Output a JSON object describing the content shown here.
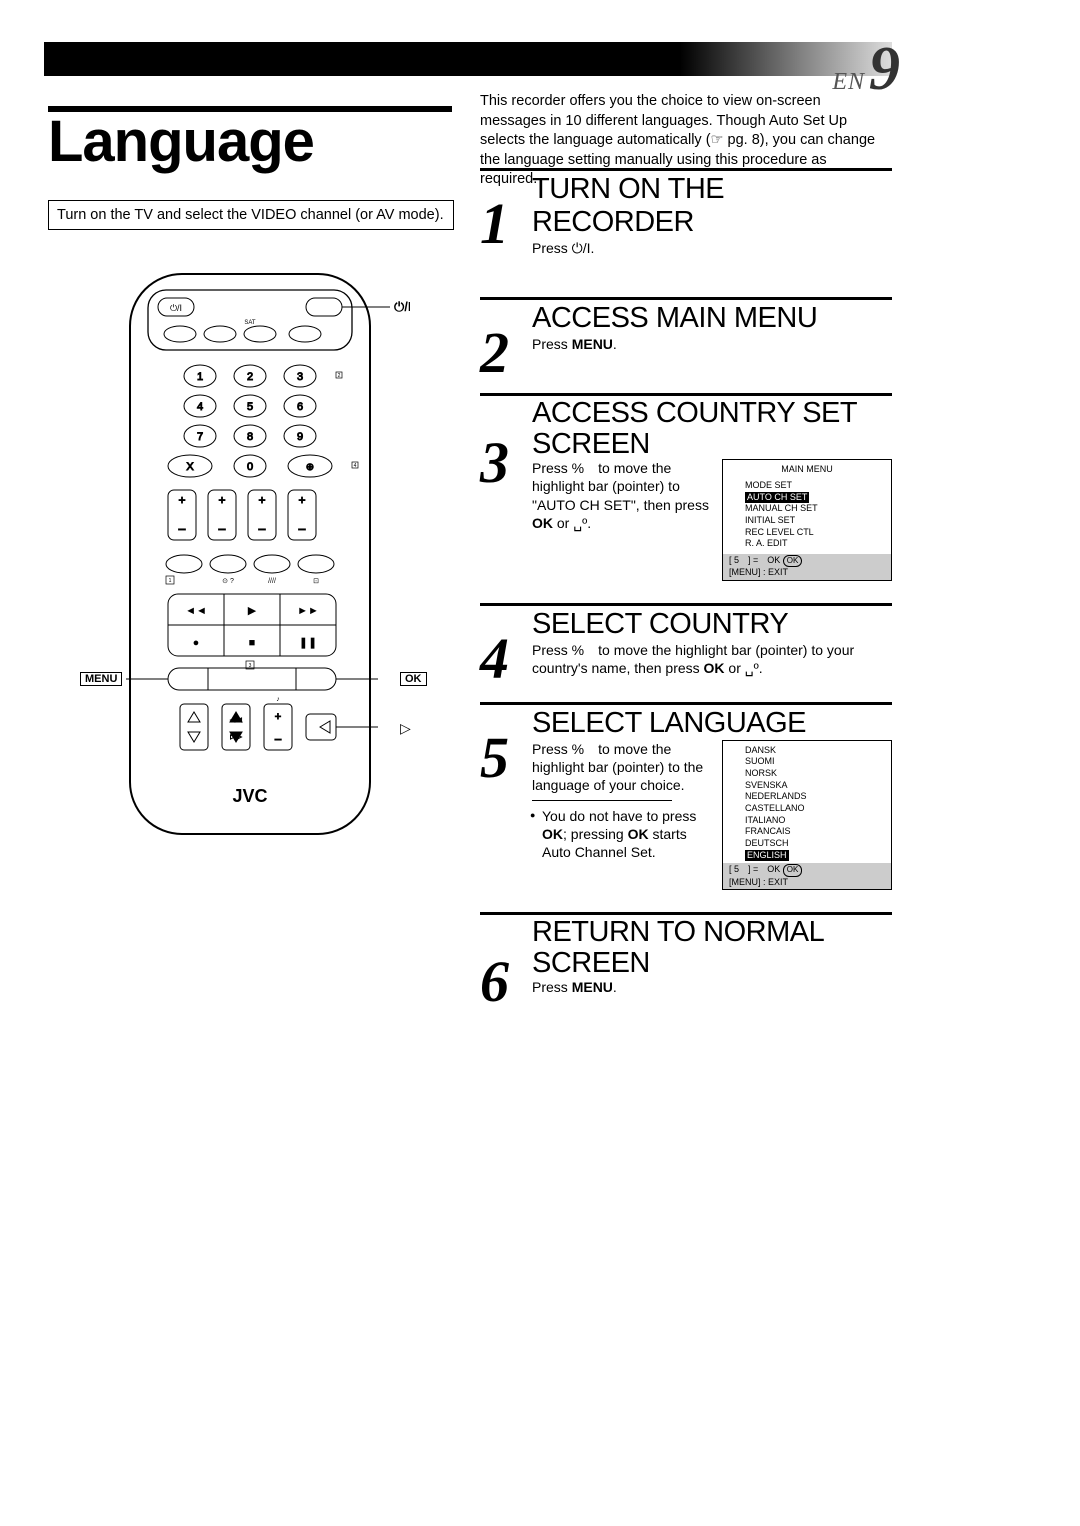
{
  "page": {
    "lang_code": "EN",
    "page_number": "9"
  },
  "title": "Language",
  "intro": "This recorder offers you the choice to view on-screen messages in 10 different languages. Though Auto Set Up selects the language automatically (☞ pg. 8), you can change the language setting manually using this procedure as required.",
  "note": "Turn on the TV and select the VIDEO channel (or AV mode).",
  "remote": {
    "menu_label": "MENU",
    "ok_label": "OK",
    "brand": "JVC",
    "power_icon": "⏻/I"
  },
  "steps": [
    {
      "num": "1",
      "title": "TURN ON THE RECORDER",
      "body": "Press ⏻/I."
    },
    {
      "num": "2",
      "title": "ACCESS MAIN MENU",
      "body_pre": "Press ",
      "body_bold": "MENU",
      "body_post": "."
    },
    {
      "num": "3",
      "title": "ACCESS COUNTRY SET SCREEN",
      "body_html": "Press %　to move the highlight bar (pointer) to \"AUTO CH SET\", then press <b>OK</b> or ␣º.",
      "menu": {
        "title": "MAIN MENU",
        "items": [
          "MODE SET",
          "AUTO CH SET",
          "MANUAL CH SET",
          "INITIAL SET",
          "REC LEVEL CTL",
          "R. A. EDIT"
        ],
        "highlight_index": 1,
        "foot1": "[ 5　] =　OK",
        "foot2": "[MENU] : EXIT"
      }
    },
    {
      "num": "4",
      "title": "SELECT COUNTRY",
      "body_html": "Press %　to move the highlight bar (pointer) to your country's name, then press <b>OK</b> or ␣º."
    },
    {
      "num": "5",
      "title": "SELECT LANGUAGE",
      "body_html": "Press %　to move the highlight bar (pointer) to the language of your choice.",
      "note_html": "You do not have to press <b>OK</b>; pressing <b>OK</b> starts Auto Channel Set.",
      "langs": {
        "items": [
          "DANSK",
          "SUOMI",
          "NORSK",
          "SVENSKA",
          "NEDERLANDS",
          "CASTELLANO",
          "ITALIANO",
          "FRANCAIS",
          "DEUTSCH",
          "ENGLISH"
        ],
        "highlight_index": 9,
        "foot1": "[ 5　] =　OK",
        "foot2": "[MENU] : EXIT"
      }
    },
    {
      "num": "6",
      "title": "RETURN TO NORMAL SCREEN",
      "body_pre": "Press ",
      "body_bold": "MENU",
      "body_post": "."
    }
  ]
}
